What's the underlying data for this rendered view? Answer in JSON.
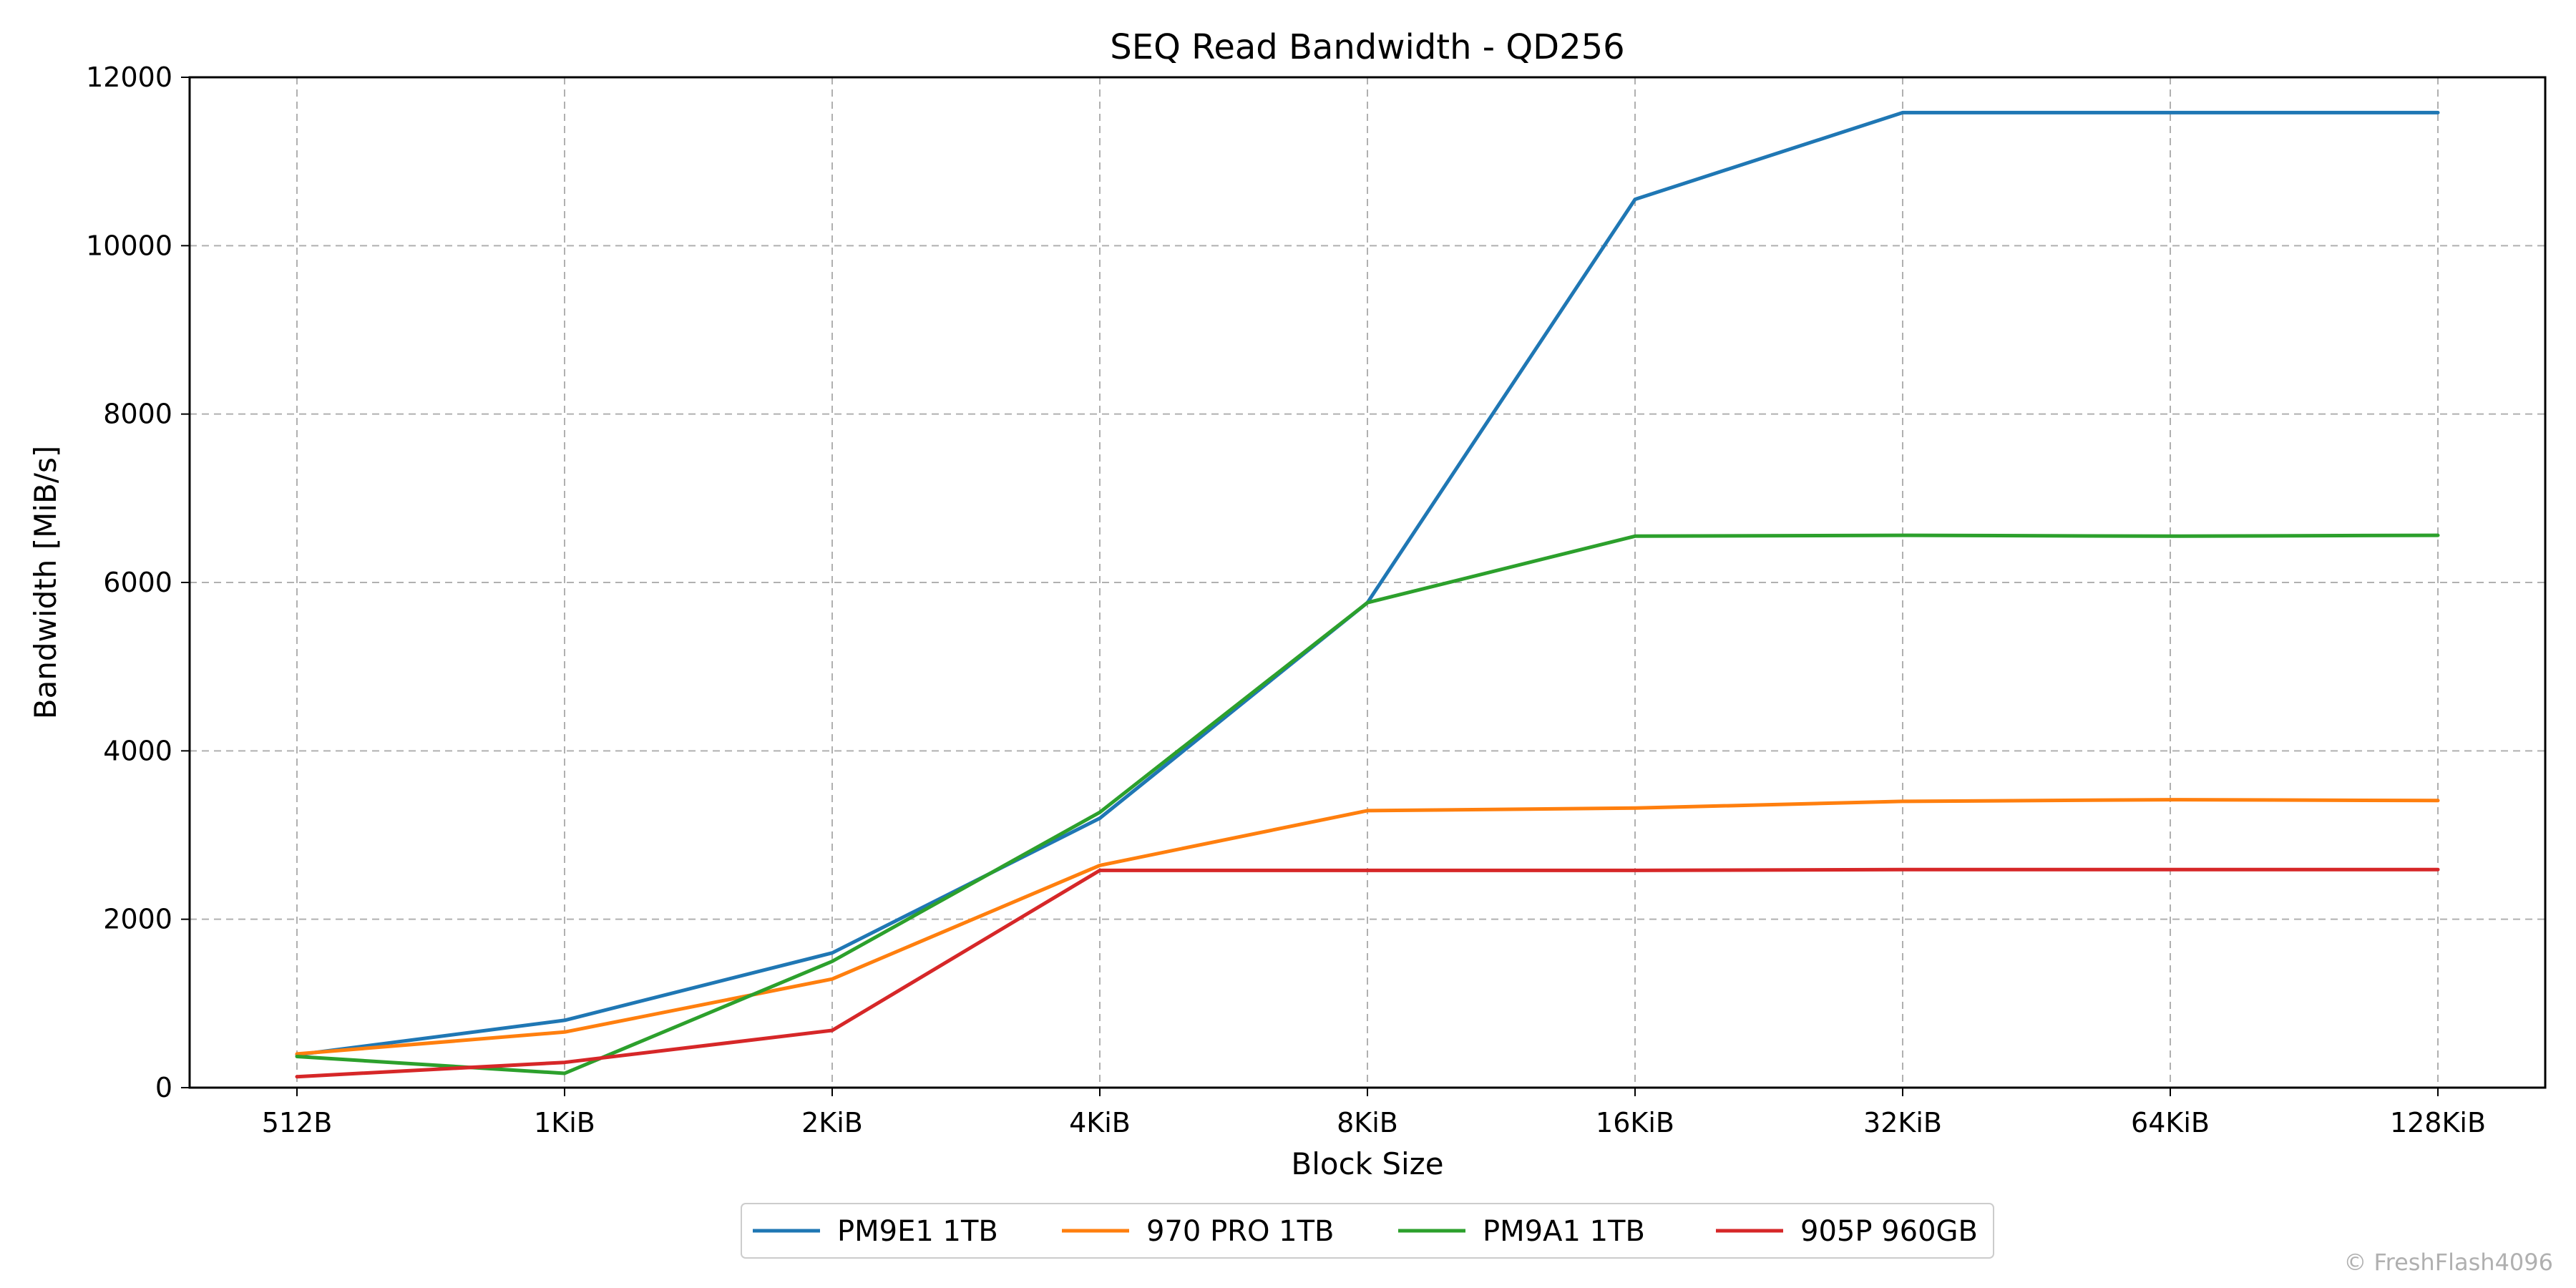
{
  "chart_data": {
    "type": "line",
    "title": "SEQ Read Bandwidth - QD256",
    "xlabel": "Block Size",
    "ylabel": "Bandwidth [MiB/s]",
    "categories": [
      "512B",
      "1KiB",
      "2KiB",
      "4KiB",
      "8KiB",
      "16KiB",
      "32KiB",
      "64KiB",
      "128KiB"
    ],
    "ylim": [
      0,
      12000
    ],
    "yticks": [
      0,
      2000,
      4000,
      6000,
      8000,
      10000,
      12000
    ],
    "grid": true,
    "legend_position": "bottom-center",
    "series": [
      {
        "name": "PM9E1 1TB",
        "color": "#1f77b4",
        "values": [
          390,
          800,
          1600,
          3200,
          5760,
          10550,
          11580,
          11580,
          11580
        ]
      },
      {
        "name": "970 PRO 1TB",
        "color": "#ff7f0e",
        "values": [
          400,
          660,
          1290,
          2640,
          3290,
          3320,
          3400,
          3420,
          3410
        ]
      },
      {
        "name": "PM9A1 1TB",
        "color": "#2ca02c",
        "values": [
          370,
          170,
          1500,
          3270,
          5760,
          6550,
          6560,
          6550,
          6560
        ]
      },
      {
        "name": "905P 960GB",
        "color": "#d62728",
        "values": [
          130,
          300,
          680,
          2580,
          2580,
          2580,
          2590,
          2590,
          2590
        ]
      }
    ],
    "watermark": "© FreshFlash4096"
  }
}
